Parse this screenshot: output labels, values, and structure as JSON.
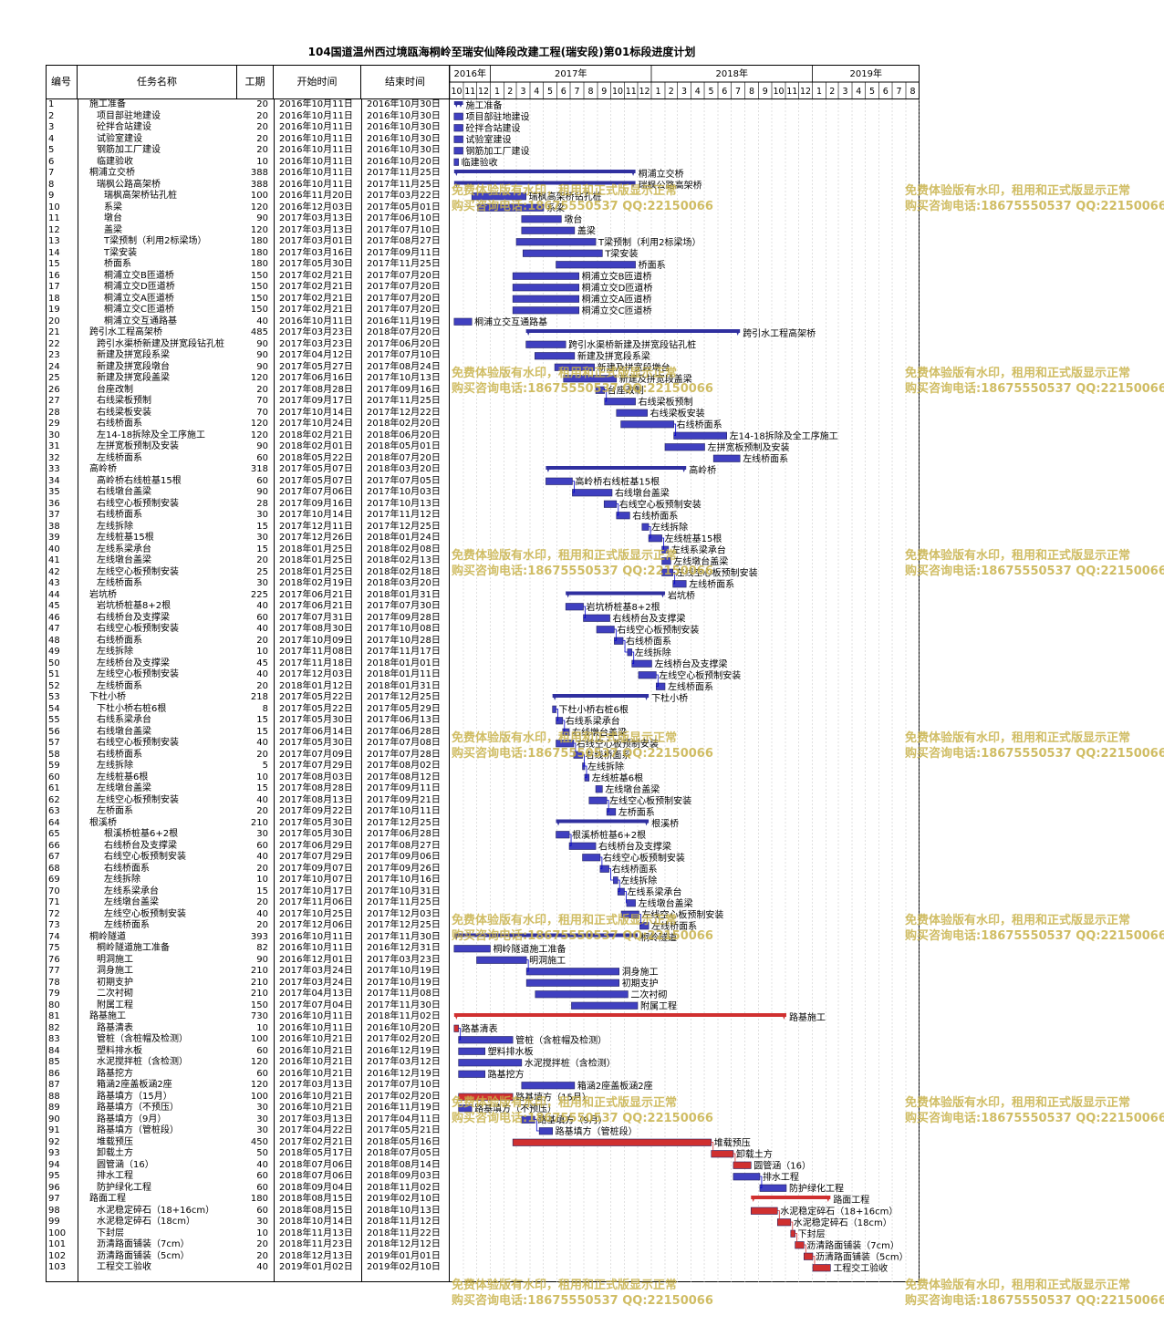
{
  "title": "104国道温州西过境瓯海桐岭至瑞安仙降段改建工程(瑞安段)第01标段进度计划",
  "headers": {
    "id": "编号",
    "name": "任务名称",
    "duration": "工期",
    "start": "开始时间",
    "end": "结束时间"
  },
  "timescale": {
    "years": [
      {
        "label": "2016年",
        "start": "2016-10-01",
        "end": "2017-01-01"
      },
      {
        "label": "2017年",
        "start": "2017-01-01",
        "end": "2018-01-01"
      },
      {
        "label": "2018年",
        "start": "2018-01-01",
        "end": "2019-01-01"
      },
      {
        "label": "2019年",
        "start": "2019-01-01",
        "end": "2019-09-01"
      }
    ],
    "months": [
      "10",
      "11",
      "12",
      "1",
      "2",
      "3",
      "4",
      "5",
      "6",
      "7",
      "8",
      "9",
      "10",
      "11",
      "12",
      "1",
      "2",
      "3",
      "4",
      "5",
      "6",
      "7",
      "8",
      "9",
      "10",
      "11",
      "12",
      "1",
      "2",
      "3",
      "4",
      "5",
      "6",
      "7",
      "8"
    ],
    "range_start": "2016-10-01",
    "range_end": "2019-09-01"
  },
  "colors": {
    "task": "#4040c0",
    "summary": "#3030a0",
    "critical": "#d03030",
    "link": "#0000cc"
  },
  "watermark": {
    "line1": "免费体验版有水印，租用和正式版显示正常",
    "line2": "购买咨询电话:18675550537 QQ:22150066"
  },
  "chart_data": {
    "type": "gantt",
    "tasks": [
      {
        "id": "1",
        "name": "施工准备",
        "indent": 1,
        "dur": "20",
        "start": "2016年10月11日",
        "end": "2016年10月30日",
        "summary": true
      },
      {
        "id": "2",
        "name": "项目部驻地建设",
        "indent": 2,
        "dur": "20",
        "start": "2016年10月11日",
        "end": "2016年10月30日"
      },
      {
        "id": "3",
        "name": "砼拌合站建设",
        "indent": 2,
        "dur": "20",
        "start": "2016年10月11日",
        "end": "2016年10月30日"
      },
      {
        "id": "4",
        "name": "试验室建设",
        "indent": 2,
        "dur": "20",
        "start": "2016年10月11日",
        "end": "2016年10月30日"
      },
      {
        "id": "5",
        "name": "钢筋加工厂建设",
        "indent": 2,
        "dur": "20",
        "start": "2016年10月11日",
        "end": "2016年10月30日"
      },
      {
        "id": "6",
        "name": "临建验收",
        "indent": 2,
        "dur": "10",
        "start": "2016年10月11日",
        "end": "2016年10月20日"
      },
      {
        "id": "7",
        "name": "桐浦立交桥",
        "indent": 1,
        "dur": "388",
        "start": "2016年10月11日",
        "end": "2017年11月25日",
        "summary": true
      },
      {
        "id": "8",
        "name": "瑞枫公路高架桥",
        "indent": 2,
        "dur": "388",
        "start": "2016年10月11日",
        "end": "2017年11月25日",
        "summary": true
      },
      {
        "id": "9",
        "name": "瑞枫高架桥钻孔桩",
        "indent": 3,
        "dur": "100",
        "start": "2016年11月20日",
        "end": "2017年03月22日"
      },
      {
        "id": "10",
        "name": "系梁",
        "indent": 3,
        "dur": "120",
        "start": "2016年12月03日",
        "end": "2017年05月01日"
      },
      {
        "id": "11",
        "name": "墩台",
        "indent": 3,
        "dur": "90",
        "start": "2017年03月13日",
        "end": "2017年06月10日"
      },
      {
        "id": "12",
        "name": "盖梁",
        "indent": 3,
        "dur": "120",
        "start": "2017年03月13日",
        "end": "2017年07月10日"
      },
      {
        "id": "13",
        "name": "T梁预制（利用2标梁场）",
        "indent": 3,
        "dur": "180",
        "start": "2017年03月01日",
        "end": "2017年08月27日"
      },
      {
        "id": "14",
        "name": "T梁安装",
        "indent": 3,
        "dur": "180",
        "start": "2017年03月16日",
        "end": "2017年09月11日"
      },
      {
        "id": "15",
        "name": "桥面系",
        "indent": 3,
        "dur": "180",
        "start": "2017年05月30日",
        "end": "2017年11月25日"
      },
      {
        "id": "16",
        "name": "桐浦立交B匝道桥",
        "indent": 3,
        "dur": "150",
        "start": "2017年02月21日",
        "end": "2017年07月20日"
      },
      {
        "id": "17",
        "name": "桐浦立交D匝道桥",
        "indent": 3,
        "dur": "150",
        "start": "2017年02月21日",
        "end": "2017年07月20日"
      },
      {
        "id": "18",
        "name": "桐浦立交A匝道桥",
        "indent": 3,
        "dur": "150",
        "start": "2017年02月21日",
        "end": "2017年07月20日"
      },
      {
        "id": "19",
        "name": "桐浦立交C匝道桥",
        "indent": 3,
        "dur": "150",
        "start": "2017年02月21日",
        "end": "2017年07月20日"
      },
      {
        "id": "20",
        "name": "桐浦立交互通路基",
        "indent": 3,
        "dur": "40",
        "start": "2016年10月11日",
        "end": "2016年11月19日"
      },
      {
        "id": "21",
        "name": "跨引水工程高架桥",
        "indent": 1,
        "dur": "485",
        "start": "2017年03月23日",
        "end": "2018年07月20日",
        "summary": true
      },
      {
        "id": "22",
        "name": "跨引水渠桥新建及拼宽段钻孔桩",
        "indent": 2,
        "dur": "90",
        "start": "2017年03月23日",
        "end": "2017年06月20日"
      },
      {
        "id": "23",
        "name": "新建及拼宽段系梁",
        "indent": 2,
        "dur": "90",
        "start": "2017年04月12日",
        "end": "2017年07月10日"
      },
      {
        "id": "24",
        "name": "新建及拼宽段墩台",
        "indent": 2,
        "dur": "90",
        "start": "2017年05月27日",
        "end": "2017年08月24日"
      },
      {
        "id": "25",
        "name": "新建及拼宽段盖梁",
        "indent": 2,
        "dur": "120",
        "start": "2017年06月16日",
        "end": "2017年10月13日"
      },
      {
        "id": "26",
        "name": "台座改制",
        "indent": 2,
        "dur": "20",
        "start": "2017年08月28日",
        "end": "2017年09月16日"
      },
      {
        "id": "27",
        "name": "右线梁板预制",
        "indent": 2,
        "dur": "70",
        "start": "2017年09月17日",
        "end": "2017年11月25日"
      },
      {
        "id": "28",
        "name": "右线梁板安装",
        "indent": 2,
        "dur": "70",
        "start": "2017年10月14日",
        "end": "2017年12月22日"
      },
      {
        "id": "29",
        "name": "右线桥面系",
        "indent": 2,
        "dur": "120",
        "start": "2017年10月24日",
        "end": "2018年02月20日"
      },
      {
        "id": "30",
        "name": "左14-18拆除及全工序施工",
        "indent": 2,
        "dur": "120",
        "start": "2018年02月21日",
        "end": "2018年06月20日"
      },
      {
        "id": "31",
        "name": "左拼宽板预制及安装",
        "indent": 2,
        "dur": "90",
        "start": "2018年02月01日",
        "end": "2018年05月01日"
      },
      {
        "id": "32",
        "name": "左线桥面系",
        "indent": 2,
        "dur": "60",
        "start": "2018年05月22日",
        "end": "2018年07月20日"
      },
      {
        "id": "33",
        "name": "高岭桥",
        "indent": 1,
        "dur": "318",
        "start": "2017年05月07日",
        "end": "2018年03月20日",
        "summary": true
      },
      {
        "id": "34",
        "name": "高岭桥右线桩基15根",
        "indent": 2,
        "dur": "60",
        "start": "2017年05月07日",
        "end": "2017年07月05日"
      },
      {
        "id": "35",
        "name": "右线墩台盖梁",
        "indent": 2,
        "dur": "90",
        "start": "2017年07月06日",
        "end": "2017年10月03日"
      },
      {
        "id": "36",
        "name": "右线空心板预制安装",
        "indent": 2,
        "dur": "28",
        "start": "2017年09月16日",
        "end": "2017年10月13日"
      },
      {
        "id": "37",
        "name": "右线桥面系",
        "indent": 2,
        "dur": "30",
        "start": "2017年10月14日",
        "end": "2017年11月12日"
      },
      {
        "id": "38",
        "name": "左线拆除",
        "indent": 2,
        "dur": "15",
        "start": "2017年12月11日",
        "end": "2017年12月25日"
      },
      {
        "id": "39",
        "name": "左线桩基15根",
        "indent": 2,
        "dur": "30",
        "start": "2017年12月26日",
        "end": "2018年01月24日"
      },
      {
        "id": "40",
        "name": "左线系梁承台",
        "indent": 2,
        "dur": "15",
        "start": "2018年01月25日",
        "end": "2018年02月08日"
      },
      {
        "id": "41",
        "name": "左线墩台盖梁",
        "indent": 2,
        "dur": "20",
        "start": "2018年01月25日",
        "end": "2018年02月13日"
      },
      {
        "id": "42",
        "name": "左线空心板预制安装",
        "indent": 2,
        "dur": "25",
        "start": "2018年01月25日",
        "end": "2018年02月18日"
      },
      {
        "id": "43",
        "name": "左线桥面系",
        "indent": 2,
        "dur": "30",
        "start": "2018年02月19日",
        "end": "2018年03月20日"
      },
      {
        "id": "44",
        "name": "岩坑桥",
        "indent": 1,
        "dur": "225",
        "start": "2017年06月21日",
        "end": "2018年01月31日",
        "summary": true
      },
      {
        "id": "45",
        "name": "岩坑桥桩基8+2根",
        "indent": 2,
        "dur": "40",
        "start": "2017年06月21日",
        "end": "2017年07月30日"
      },
      {
        "id": "46",
        "name": "右线桥台及支撑梁",
        "indent": 2,
        "dur": "60",
        "start": "2017年07月31日",
        "end": "2017年09月28日"
      },
      {
        "id": "47",
        "name": "右线空心板预制安装",
        "indent": 2,
        "dur": "40",
        "start": "2017年08月30日",
        "end": "2017年10月08日"
      },
      {
        "id": "48",
        "name": "右线桥面系",
        "indent": 2,
        "dur": "20",
        "start": "2017年10月09日",
        "end": "2017年10月28日"
      },
      {
        "id": "49",
        "name": "左线拆除",
        "indent": 2,
        "dur": "10",
        "start": "2017年11月08日",
        "end": "2017年11月17日"
      },
      {
        "id": "50",
        "name": "左线桥台及支撑梁",
        "indent": 2,
        "dur": "45",
        "start": "2017年11月18日",
        "end": "2018年01月01日"
      },
      {
        "id": "51",
        "name": "左线空心板预制安装",
        "indent": 2,
        "dur": "40",
        "start": "2017年12月03日",
        "end": "2018年01月11日"
      },
      {
        "id": "52",
        "name": "左线桥面系",
        "indent": 2,
        "dur": "20",
        "start": "2018年01月12日",
        "end": "2018年01月31日"
      },
      {
        "id": "53",
        "name": "下杜小桥",
        "indent": 1,
        "dur": "218",
        "start": "2017年05月22日",
        "end": "2017年12月25日",
        "summary": true
      },
      {
        "id": "54",
        "name": "下杜小桥右桩6根",
        "indent": 2,
        "dur": "8",
        "start": "2017年05月22日",
        "end": "2017年05月29日"
      },
      {
        "id": "55",
        "name": "右线系梁承台",
        "indent": 2,
        "dur": "15",
        "start": "2017年05月30日",
        "end": "2017年06月13日"
      },
      {
        "id": "56",
        "name": "右线墩台盖梁",
        "indent": 2,
        "dur": "15",
        "start": "2017年06月14日",
        "end": "2017年06月28日"
      },
      {
        "id": "57",
        "name": "右线空心板预制安装",
        "indent": 2,
        "dur": "40",
        "start": "2017年05月30日",
        "end": "2017年07月08日"
      },
      {
        "id": "58",
        "name": "右线桥面系",
        "indent": 2,
        "dur": "20",
        "start": "2017年07月09日",
        "end": "2017年07月28日"
      },
      {
        "id": "59",
        "name": "左线拆除",
        "indent": 2,
        "dur": "5",
        "start": "2017年07月29日",
        "end": "2017年08月02日"
      },
      {
        "id": "60",
        "name": "左线桩基6根",
        "indent": 2,
        "dur": "10",
        "start": "2017年08月03日",
        "end": "2017年08月12日"
      },
      {
        "id": "61",
        "name": "左线墩台盖梁",
        "indent": 2,
        "dur": "15",
        "start": "2017年08月28日",
        "end": "2017年09月11日"
      },
      {
        "id": "62",
        "name": "左线空心板预制安装",
        "indent": 2,
        "dur": "40",
        "start": "2017年08月13日",
        "end": "2017年09月21日"
      },
      {
        "id": "63",
        "name": "左桥面系",
        "indent": 2,
        "dur": "20",
        "start": "2017年09月22日",
        "end": "2017年10月11日"
      },
      {
        "id": "64",
        "name": "根溪桥",
        "indent": 1,
        "dur": "210",
        "start": "2017年05月30日",
        "end": "2017年12月25日",
        "summary": true
      },
      {
        "id": "65",
        "name": "根溪桥桩基6+2根",
        "indent": 3,
        "dur": "30",
        "start": "2017年05月30日",
        "end": "2017年06月28日"
      },
      {
        "id": "66",
        "name": "右线桥台及支撑梁",
        "indent": 3,
        "dur": "60",
        "start": "2017年06月29日",
        "end": "2017年08月27日"
      },
      {
        "id": "67",
        "name": "右线空心板预制安装",
        "indent": 3,
        "dur": "40",
        "start": "2017年07月29日",
        "end": "2017年09月06日"
      },
      {
        "id": "68",
        "name": "右线桥面系",
        "indent": 3,
        "dur": "20",
        "start": "2017年09月07日",
        "end": "2017年09月26日"
      },
      {
        "id": "69",
        "name": "左线拆除",
        "indent": 3,
        "dur": "10",
        "start": "2017年10月07日",
        "end": "2017年10月16日"
      },
      {
        "id": "70",
        "name": "左线系梁承台",
        "indent": 3,
        "dur": "15",
        "start": "2017年10月17日",
        "end": "2017年10月31日"
      },
      {
        "id": "71",
        "name": "左线墩台盖梁",
        "indent": 3,
        "dur": "20",
        "start": "2017年11月06日",
        "end": "2017年11月25日"
      },
      {
        "id": "72",
        "name": "左线空心板预制安装",
        "indent": 3,
        "dur": "40",
        "start": "2017年10月25日",
        "end": "2017年12月03日"
      },
      {
        "id": "73",
        "name": "左线桥面系",
        "indent": 3,
        "dur": "20",
        "start": "2017年12月06日",
        "end": "2017年12月25日"
      },
      {
        "id": "74",
        "name": "桐岭隧道",
        "indent": 1,
        "dur": "393",
        "start": "2016年10月11日",
        "end": "2017年11月30日",
        "summary": true
      },
      {
        "id": "75",
        "name": "桐岭隧道施工准备",
        "indent": 2,
        "dur": "82",
        "start": "2016年10月11日",
        "end": "2016年12月31日"
      },
      {
        "id": "76",
        "name": "明洞施工",
        "indent": 2,
        "dur": "90",
        "start": "2016年12月01日",
        "end": "2017年03月23日"
      },
      {
        "id": "77",
        "name": "洞身施工",
        "indent": 2,
        "dur": "210",
        "start": "2017年03月24日",
        "end": "2017年10月19日"
      },
      {
        "id": "78",
        "name": "初期支护",
        "indent": 2,
        "dur": "210",
        "start": "2017年03月24日",
        "end": "2017年10月19日"
      },
      {
        "id": "79",
        "name": "二次衬砌",
        "indent": 2,
        "dur": "210",
        "start": "2017年04月13日",
        "end": "2017年11月08日"
      },
      {
        "id": "80",
        "name": "附属工程",
        "indent": 2,
        "dur": "150",
        "start": "2017年07月04日",
        "end": "2017年11月30日"
      },
      {
        "id": "81",
        "name": "路基施工",
        "indent": 1,
        "dur": "730",
        "start": "2016年10月11日",
        "end": "2018年11月02日",
        "summary": true,
        "critical": true
      },
      {
        "id": "82",
        "name": "路基清表",
        "indent": 2,
        "dur": "10",
        "start": "2016年10月11日",
        "end": "2016年10月20日",
        "critical": true
      },
      {
        "id": "83",
        "name": "管桩（含桩帽及检测）",
        "indent": 2,
        "dur": "100",
        "start": "2016年10月21日",
        "end": "2017年02月20日"
      },
      {
        "id": "84",
        "name": "塑料排水板",
        "indent": 2,
        "dur": "60",
        "start": "2016年10月21日",
        "end": "2016年12月19日"
      },
      {
        "id": "85",
        "name": "水泥搅拌桩（含检测）",
        "indent": 2,
        "dur": "120",
        "start": "2016年10月21日",
        "end": "2017年03月12日"
      },
      {
        "id": "86",
        "name": "路基挖方",
        "indent": 2,
        "dur": "60",
        "start": "2016年10月21日",
        "end": "2016年12月19日"
      },
      {
        "id": "87",
        "name": "箱涵2座盖板涵2座",
        "indent": 2,
        "dur": "120",
        "start": "2017年03月13日",
        "end": "2017年07月10日"
      },
      {
        "id": "88",
        "name": "路基填方（15月）",
        "indent": 2,
        "dur": "100",
        "start": "2016年10月21日",
        "end": "2017年02月20日",
        "critical": true
      },
      {
        "id": "89",
        "name": "路基填方（不预压）",
        "indent": 2,
        "dur": "30",
        "start": "2016年10月21日",
        "end": "2016年11月19日"
      },
      {
        "id": "90",
        "name": "路基填方（9月）",
        "indent": 2,
        "dur": "30",
        "start": "2017年03月13日",
        "end": "2017年04月11日"
      },
      {
        "id": "91",
        "name": "路基填方（管桩段）",
        "indent": 2,
        "dur": "30",
        "start": "2017年04月22日",
        "end": "2017年05月21日"
      },
      {
        "id": "92",
        "name": "堆载预压",
        "indent": 2,
        "dur": "450",
        "start": "2017年02月21日",
        "end": "2018年05月16日",
        "critical": true
      },
      {
        "id": "93",
        "name": "卸载土方",
        "indent": 2,
        "dur": "50",
        "start": "2018年05月17日",
        "end": "2018年07月05日",
        "critical": true
      },
      {
        "id": "94",
        "name": "圆管涵（16）",
        "indent": 2,
        "dur": "40",
        "start": "2018年07月06日",
        "end": "2018年08月14日",
        "critical": true
      },
      {
        "id": "95",
        "name": "排水工程",
        "indent": 2,
        "dur": "60",
        "start": "2018年07月06日",
        "end": "2018年09月03日"
      },
      {
        "id": "96",
        "name": "防护绿化工程",
        "indent": 2,
        "dur": "60",
        "start": "2018年09月04日",
        "end": "2018年11月02日"
      },
      {
        "id": "97",
        "name": "路面工程",
        "indent": 1,
        "dur": "180",
        "start": "2018年08月15日",
        "end": "2019年02月10日",
        "summary": true,
        "critical": true
      },
      {
        "id": "98",
        "name": "水泥稳定碎石（18+16cm）",
        "indent": 2,
        "dur": "60",
        "start": "2018年08月15日",
        "end": "2018年10月13日",
        "critical": true
      },
      {
        "id": "99",
        "name": "水泥稳定碎石（18cm）",
        "indent": 2,
        "dur": "30",
        "start": "2018年10月14日",
        "end": "2018年11月12日",
        "critical": true
      },
      {
        "id": "100",
        "name": "下封层",
        "indent": 2,
        "dur": "10",
        "start": "2018年11月13日",
        "end": "2018年11月22日",
        "critical": true
      },
      {
        "id": "101",
        "name": "沥清路面铺装（7cm）",
        "indent": 2,
        "dur": "20",
        "start": "2018年11月23日",
        "end": "2018年12月12日",
        "critical": true
      },
      {
        "id": "102",
        "name": "沥清路面铺装（5cm）",
        "indent": 2,
        "dur": "20",
        "start": "2018年12月13日",
        "end": "2019年01月01日",
        "critical": true
      },
      {
        "id": "103",
        "name": "工程交工验收",
        "indent": 2,
        "dur": "40",
        "start": "2019年01月02日",
        "end": "2019年02月10日",
        "critical": true
      }
    ]
  }
}
